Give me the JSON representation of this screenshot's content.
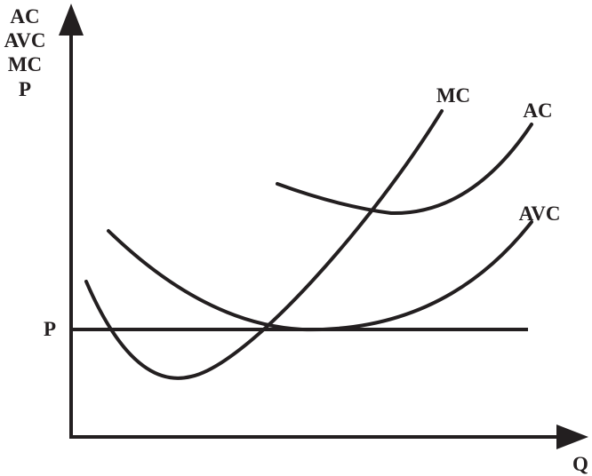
{
  "y_axis": {
    "label_lines": [
      "AC",
      "AVC",
      "MC",
      "P"
    ]
  },
  "x_axis": {
    "label": "Q"
  },
  "price_line": {
    "label": "P"
  },
  "curves": [
    {
      "label": "MC"
    },
    {
      "label": "AC"
    },
    {
      "label": "AVC"
    }
  ]
}
